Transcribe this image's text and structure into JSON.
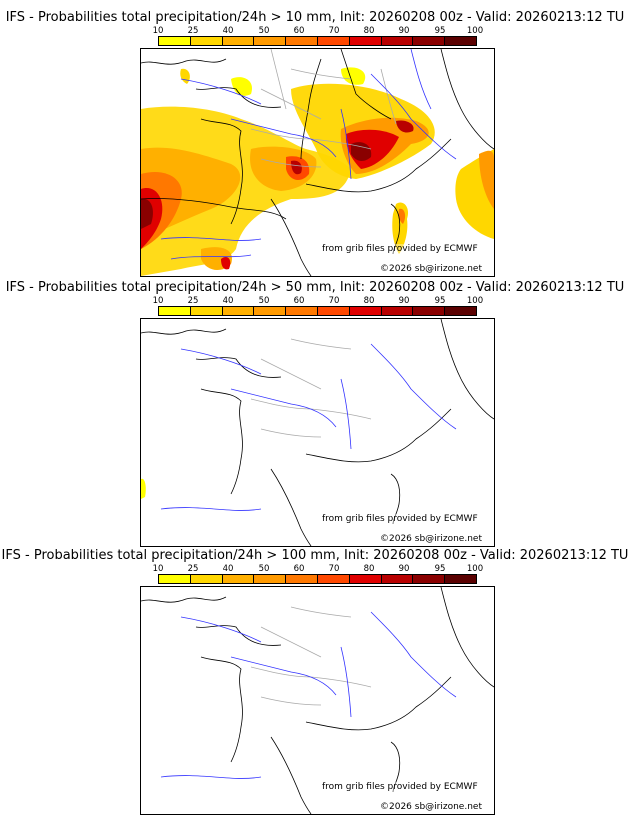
{
  "legend_ticks": [
    "10",
    "25",
    "40",
    "50",
    "60",
    "70",
    "80",
    "90",
    "95",
    "100"
  ],
  "legend_colors": [
    "#ffff00",
    "#ffd700",
    "#ffb000",
    "#ff9a00",
    "#ff7800",
    "#ff4800",
    "#e00000",
    "#b80000",
    "#8a0000",
    "#5a0000"
  ],
  "credits": {
    "source": "from grib files provided by ECMWF",
    "copyright": "©2026 sb@irizone.net"
  },
  "panels": [
    {
      "title": "IFS - Probabilities total precipitation/24h > 10 mm, Init: 20260208 00z - Valid: 20260213:12 TU",
      "threshold_mm": 10
    },
    {
      "title": "IFS - Probabilities total precipitation/24h > 50 mm, Init: 20260208 00z - Valid: 20260213:12 TU",
      "threshold_mm": 50
    },
    {
      "title": "IFS - Probabilities total precipitation/24h > 100 mm, Init: 20260208 00z - Valid: 20260213:12 TU",
      "threshold_mm": 100
    }
  ]
}
